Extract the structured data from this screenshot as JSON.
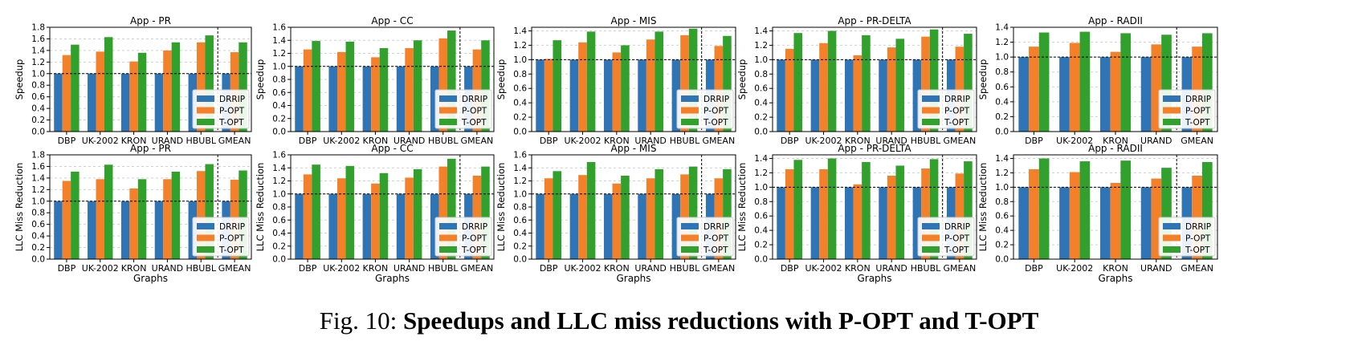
{
  "caption": {
    "prefix": "Fig. 10: ",
    "bold": "Speedups and LLC miss reductions with P-OPT and T-OPT"
  },
  "colors": {
    "DRRIP": "#2f75b5",
    "P-OPT": "#f5802a",
    "T-OPT": "#32a02d"
  },
  "chart_data": [
    {
      "type": "bar",
      "title": "App - PR",
      "ylabel": "Speedup",
      "xlabel": "",
      "ylim": [
        0,
        1.8
      ],
      "yticks": [
        "0.0",
        "0.2",
        "0.4",
        "0.6",
        "0.8",
        "1.0",
        "1.2",
        "1.4",
        "1.6",
        "1.8"
      ],
      "categories": [
        "DBP",
        "UK-2002",
        "KRON",
        "URAND",
        "HBUBL",
        "GMEAN"
      ],
      "series": [
        {
          "name": "DRRIP",
          "values": [
            1.0,
            1.0,
            1.0,
            1.0,
            1.0,
            1.0
          ]
        },
        {
          "name": "P-OPT",
          "values": [
            1.32,
            1.38,
            1.21,
            1.4,
            1.54,
            1.37
          ]
        },
        {
          "name": "T-OPT",
          "values": [
            1.5,
            1.63,
            1.36,
            1.54,
            1.66,
            1.54
          ]
        }
      ],
      "reference_line": 1.0,
      "separator_before_last": true,
      "grid": true,
      "legend": "bottom-right"
    },
    {
      "type": "bar",
      "title": "App - CC",
      "ylabel": "Speedup",
      "xlabel": "",
      "ylim": [
        0,
        1.6
      ],
      "yticks": [
        "0.0",
        "0.2",
        "0.4",
        "0.6",
        "0.8",
        "1.0",
        "1.2",
        "1.4",
        "1.6"
      ],
      "categories": [
        "DBP",
        "UK-2002",
        "KRON",
        "URAND",
        "HBUBL",
        "GMEAN"
      ],
      "series": [
        {
          "name": "DRRIP",
          "values": [
            1.0,
            1.0,
            1.0,
            1.0,
            1.0,
            1.0
          ]
        },
        {
          "name": "P-OPT",
          "values": [
            1.26,
            1.22,
            1.14,
            1.28,
            1.43,
            1.26
          ]
        },
        {
          "name": "T-OPT",
          "values": [
            1.39,
            1.38,
            1.28,
            1.4,
            1.55,
            1.4
          ]
        }
      ],
      "reference_line": 1.0,
      "separator_before_last": true,
      "grid": true,
      "legend": "bottom-right"
    },
    {
      "type": "bar",
      "title": "App - MIS",
      "ylabel": "Speedup",
      "xlabel": "",
      "ylim": [
        0,
        1.45
      ],
      "yticks": [
        "0.0",
        "0.2",
        "0.4",
        "0.6",
        "0.8",
        "1.0",
        "1.2",
        "1.4"
      ],
      "categories": [
        "DBP",
        "UK-2002",
        "KRON",
        "URAND",
        "HBUBL",
        "GMEAN"
      ],
      "series": [
        {
          "name": "DRRIP",
          "values": [
            1.0,
            1.0,
            1.0,
            1.0,
            1.0,
            1.0
          ]
        },
        {
          "name": "P-OPT",
          "values": [
            1.01,
            1.24,
            1.1,
            1.28,
            1.34,
            1.19
          ]
        },
        {
          "name": "T-OPT",
          "values": [
            1.27,
            1.39,
            1.2,
            1.39,
            1.43,
            1.33
          ]
        }
      ],
      "reference_line": 1.0,
      "separator_before_last": true,
      "grid": true,
      "legend": "bottom-right"
    },
    {
      "type": "bar",
      "title": "App - PR-DELTA",
      "ylabel": "Speedup",
      "xlabel": "",
      "ylim": [
        0,
        1.45
      ],
      "yticks": [
        "0.0",
        "0.2",
        "0.4",
        "0.6",
        "0.8",
        "1.0",
        "1.2",
        "1.4"
      ],
      "categories": [
        "DBP",
        "UK-2002",
        "KRON",
        "URAND",
        "HBUBL",
        "GMEAN"
      ],
      "series": [
        {
          "name": "DRRIP",
          "values": [
            1.0,
            1.0,
            1.0,
            1.0,
            1.0,
            1.0
          ]
        },
        {
          "name": "P-OPT",
          "values": [
            1.15,
            1.23,
            1.06,
            1.17,
            1.32,
            1.18
          ]
        },
        {
          "name": "T-OPT",
          "values": [
            1.37,
            1.4,
            1.34,
            1.29,
            1.42,
            1.36
          ]
        }
      ],
      "reference_line": 1.0,
      "separator_before_last": true,
      "grid": true,
      "legend": "bottom-right"
    },
    {
      "type": "bar",
      "title": "App - RADII",
      "ylabel": "Speedup",
      "xlabel": "",
      "ylim": [
        0,
        1.4
      ],
      "yticks": [
        "0.0",
        "0.2",
        "0.4",
        "0.6",
        "0.8",
        "1.0",
        "1.2",
        "1.4"
      ],
      "categories": [
        "DBP",
        "UK-2002",
        "KRON",
        "URAND",
        "GMEAN"
      ],
      "series": [
        {
          "name": "DRRIP",
          "values": [
            1.0,
            1.0,
            1.0,
            1.0,
            1.0
          ]
        },
        {
          "name": "P-OPT",
          "values": [
            1.14,
            1.19,
            1.07,
            1.17,
            1.14
          ]
        },
        {
          "name": "T-OPT",
          "values": [
            1.33,
            1.34,
            1.32,
            1.3,
            1.32
          ]
        }
      ],
      "reference_line": 1.0,
      "separator_before_last": true,
      "grid": true,
      "legend": "bottom-right"
    },
    {
      "type": "bar",
      "title": "App - PR",
      "ylabel": "LLC Miss Reduction",
      "xlabel": "Graphs",
      "ylim": [
        0,
        1.8
      ],
      "yticks": [
        "0.0",
        "0.2",
        "0.4",
        "0.6",
        "0.8",
        "1.0",
        "1.2",
        "1.4",
        "1.6",
        "1.8"
      ],
      "categories": [
        "DBP",
        "UK-2002",
        "KRON",
        "URAND",
        "HBUBL",
        "GMEAN"
      ],
      "series": [
        {
          "name": "DRRIP",
          "values": [
            1.0,
            1.0,
            1.0,
            1.0,
            1.0,
            1.0
          ]
        },
        {
          "name": "P-OPT",
          "values": [
            1.35,
            1.38,
            1.22,
            1.38,
            1.52,
            1.37
          ]
        },
        {
          "name": "T-OPT",
          "values": [
            1.51,
            1.63,
            1.38,
            1.51,
            1.64,
            1.53
          ]
        }
      ],
      "reference_line": 1.0,
      "separator_before_last": true,
      "grid": true,
      "legend": "bottom-right"
    },
    {
      "type": "bar",
      "title": "App - CC",
      "ylabel": "LLC Miss Reduction",
      "xlabel": "Graphs",
      "ylim": [
        0,
        1.6
      ],
      "yticks": [
        "0.0",
        "0.2",
        "0.4",
        "0.6",
        "0.8",
        "1.0",
        "1.2",
        "1.4",
        "1.6"
      ],
      "categories": [
        "DBP",
        "UK-2002",
        "KRON",
        "URAND",
        "HBUBL",
        "GMEAN"
      ],
      "series": [
        {
          "name": "DRRIP",
          "values": [
            1.0,
            1.0,
            1.0,
            1.0,
            1.0,
            1.0
          ]
        },
        {
          "name": "P-OPT",
          "values": [
            1.3,
            1.24,
            1.16,
            1.25,
            1.42,
            1.28
          ]
        },
        {
          "name": "T-OPT",
          "values": [
            1.45,
            1.43,
            1.32,
            1.38,
            1.54,
            1.42
          ]
        }
      ],
      "reference_line": 1.0,
      "separator_before_last": true,
      "grid": true,
      "legend": "bottom-right"
    },
    {
      "type": "bar",
      "title": "App - MIS",
      "ylabel": "LLC Miss Reduction",
      "xlabel": "Graphs",
      "ylim": [
        0,
        1.6
      ],
      "yticks": [
        "0.0",
        "0.2",
        "0.4",
        "0.6",
        "0.8",
        "1.0",
        "1.2",
        "1.4",
        "1.6"
      ],
      "categories": [
        "DBP",
        "UK-2002",
        "KRON",
        "URAND",
        "HBUBL",
        "GMEAN"
      ],
      "series": [
        {
          "name": "DRRIP",
          "values": [
            1.0,
            1.0,
            1.0,
            1.0,
            1.0,
            1.0
          ]
        },
        {
          "name": "P-OPT",
          "values": [
            1.24,
            1.29,
            1.16,
            1.24,
            1.3,
            1.24
          ]
        },
        {
          "name": "T-OPT",
          "values": [
            1.35,
            1.49,
            1.28,
            1.38,
            1.42,
            1.38
          ]
        }
      ],
      "reference_line": 1.0,
      "separator_before_last": true,
      "grid": true,
      "legend": "bottom-right"
    },
    {
      "type": "bar",
      "title": "App - PR-DELTA",
      "ylabel": "LLC Miss Reduction",
      "xlabel": "Graphs",
      "ylim": [
        0,
        1.45
      ],
      "yticks": [
        "0.0",
        "0.2",
        "0.4",
        "0.6",
        "0.8",
        "1.0",
        "1.2",
        "1.4"
      ],
      "categories": [
        "DBP",
        "UK-2002",
        "KRON",
        "URAND",
        "HBUBL",
        "GMEAN"
      ],
      "series": [
        {
          "name": "DRRIP",
          "values": [
            1.0,
            1.0,
            1.0,
            1.0,
            1.0,
            1.0
          ]
        },
        {
          "name": "P-OPT",
          "values": [
            1.25,
            1.25,
            1.04,
            1.16,
            1.26,
            1.19
          ]
        },
        {
          "name": "T-OPT",
          "values": [
            1.38,
            1.4,
            1.35,
            1.3,
            1.39,
            1.36
          ]
        }
      ],
      "reference_line": 1.0,
      "separator_before_last": true,
      "grid": true,
      "legend": "bottom-right"
    },
    {
      "type": "bar",
      "title": "App - RADII",
      "ylabel": "LLC Miss Reduction",
      "xlabel": "Graphs",
      "ylim": [
        0,
        1.45
      ],
      "yticks": [
        "0.0",
        "0.2",
        "0.4",
        "0.6",
        "0.8",
        "1.0",
        "1.2",
        "1.4"
      ],
      "categories": [
        "DBP",
        "UK-2002",
        "KRON",
        "URAND",
        "GMEAN"
      ],
      "series": [
        {
          "name": "DRRIP",
          "values": [
            1.0,
            1.0,
            1.0,
            1.0,
            1.0
          ]
        },
        {
          "name": "P-OPT",
          "values": [
            1.25,
            1.21,
            1.06,
            1.12,
            1.16
          ]
        },
        {
          "name": "T-OPT",
          "values": [
            1.4,
            1.36,
            1.37,
            1.27,
            1.35
          ]
        }
      ],
      "reference_line": 1.0,
      "separator_before_last": true,
      "grid": true,
      "legend": "bottom-right"
    }
  ]
}
